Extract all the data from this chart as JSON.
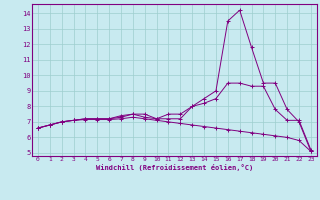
{
  "xlabel": "Windchill (Refroidissement éolien,°C)",
  "background_color": "#c8eaf0",
  "grid_color": "#9ecece",
  "line_color": "#800080",
  "xlim": [
    -0.5,
    23.5
  ],
  "ylim": [
    4.8,
    14.6
  ],
  "yticks": [
    5,
    6,
    7,
    8,
    9,
    10,
    11,
    12,
    13,
    14
  ],
  "xticks": [
    0,
    1,
    2,
    3,
    4,
    5,
    6,
    7,
    8,
    9,
    10,
    11,
    12,
    13,
    14,
    15,
    16,
    17,
    18,
    19,
    20,
    21,
    22,
    23
  ],
  "line1_x": [
    0,
    1,
    2,
    3,
    4,
    5,
    6,
    7,
    8,
    9,
    10,
    11,
    12,
    13,
    14,
    15,
    16,
    17,
    18,
    19,
    20,
    21,
    22,
    23
  ],
  "line1_y": [
    6.6,
    6.8,
    7.0,
    7.1,
    7.2,
    7.2,
    7.2,
    7.3,
    7.5,
    7.3,
    7.2,
    7.2,
    7.2,
    8.0,
    8.2,
    8.5,
    9.5,
    9.5,
    9.3,
    9.3,
    7.8,
    7.1,
    7.1,
    5.2
  ],
  "line2_x": [
    0,
    1,
    2,
    3,
    4,
    5,
    6,
    7,
    8,
    9,
    10,
    11,
    12,
    13,
    14,
    15,
    16,
    17,
    18,
    19,
    20,
    21,
    22,
    23
  ],
  "line2_y": [
    6.6,
    6.8,
    7.0,
    7.1,
    7.2,
    7.2,
    7.2,
    7.4,
    7.5,
    7.5,
    7.2,
    7.5,
    7.5,
    8.0,
    8.5,
    9.0,
    13.5,
    14.2,
    11.8,
    9.5,
    9.5,
    7.8,
    7.0,
    5.1
  ],
  "line3_x": [
    0,
    1,
    2,
    3,
    4,
    5,
    6,
    7,
    8,
    9,
    10,
    11,
    12,
    13,
    14,
    15,
    16,
    17,
    18,
    19,
    20,
    21,
    22,
    23
  ],
  "line3_y": [
    6.6,
    6.8,
    7.0,
    7.1,
    7.15,
    7.15,
    7.15,
    7.2,
    7.3,
    7.2,
    7.1,
    7.0,
    6.9,
    6.8,
    6.7,
    6.6,
    6.5,
    6.4,
    6.3,
    6.2,
    6.1,
    6.0,
    5.8,
    5.1
  ]
}
